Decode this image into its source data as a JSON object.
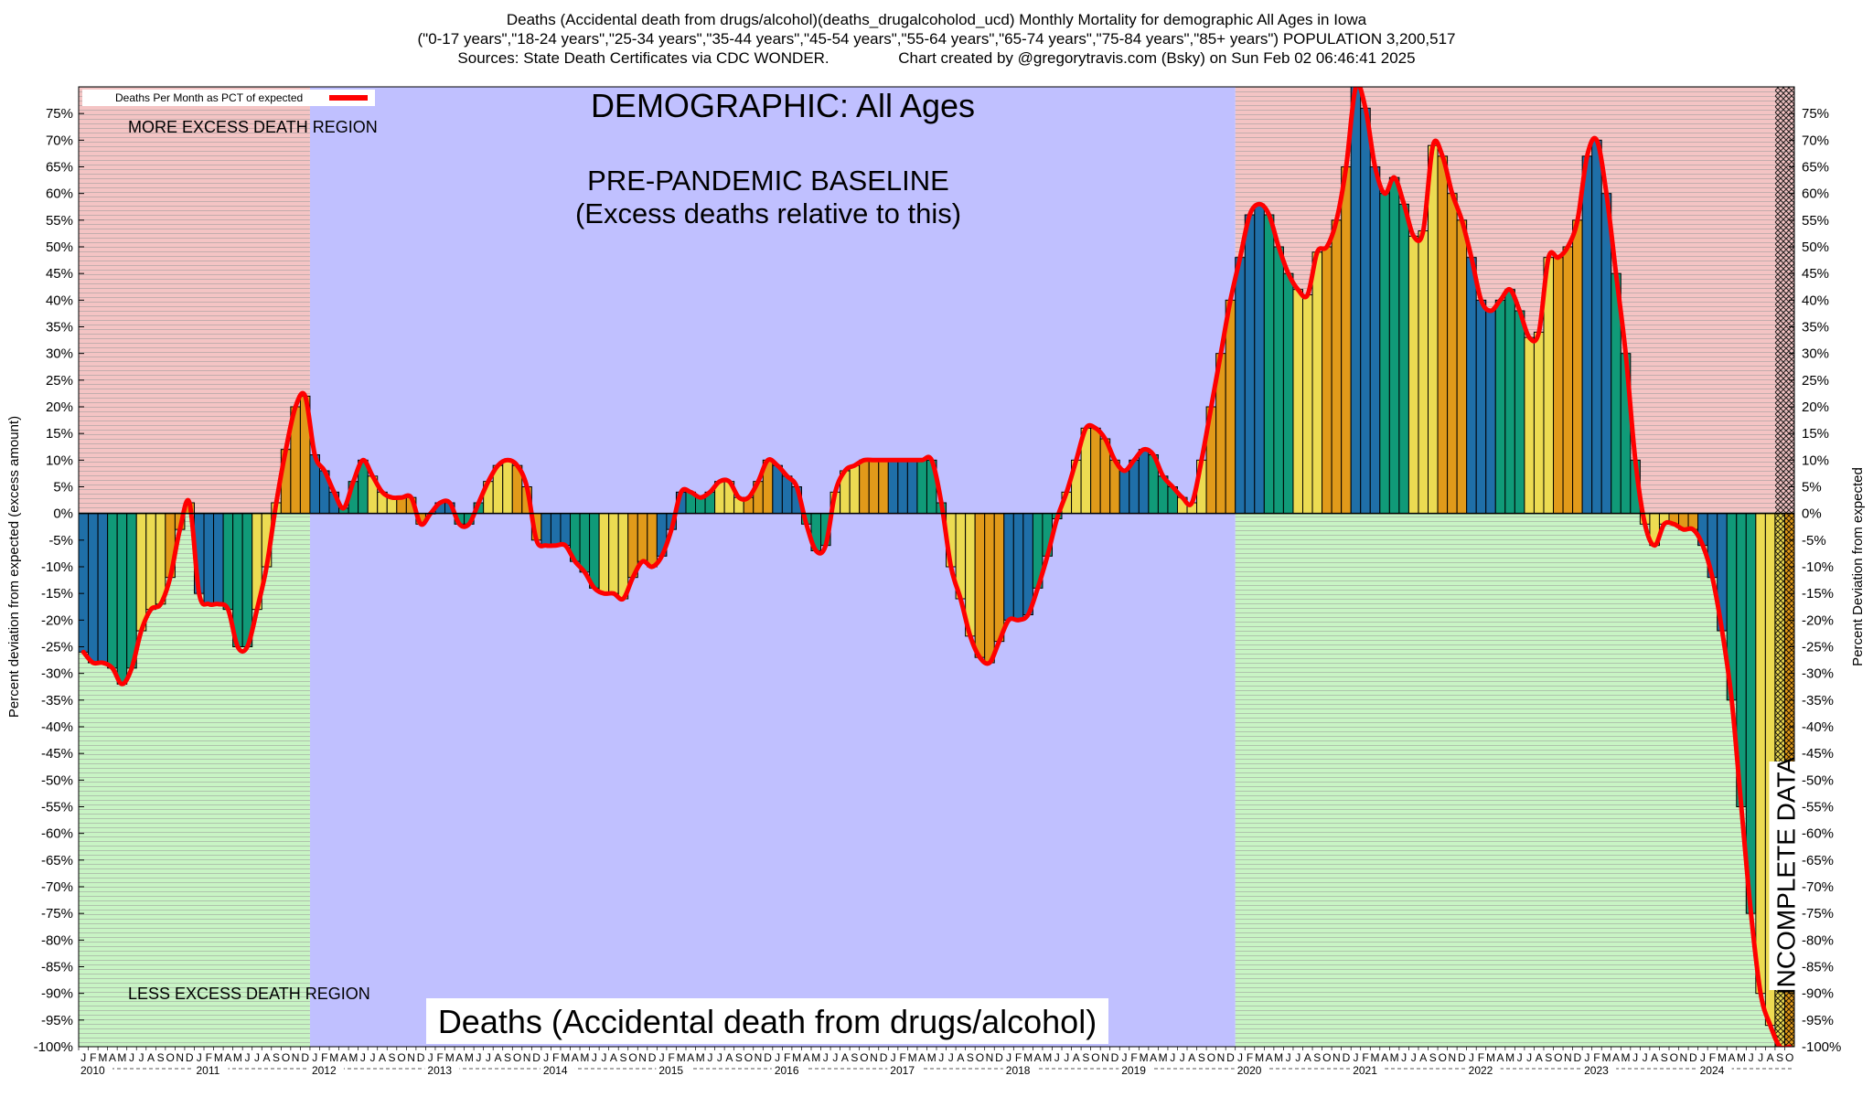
{
  "header": {
    "line1": "Deaths (Accidental death from drugs/alcohol)(deaths_drugalcoholod_ucd) Monthly Mortality for demographic All Ages in Iowa",
    "line2": "(\"0-17 years\",\"18-24 years\",\"25-34 years\",\"35-44 years\",\"45-54 years\",\"55-64 years\",\"65-74 years\",\"75-84 years\",\"85+ years\") POPULATION 3,200,517",
    "line3_left": "Sources: State Death Certificates via CDC WONDER.",
    "line3_right": "Chart created by @gregorytravis.com (Bsky) on Sun Feb 02 06:46:41 2025"
  },
  "chart_data": {
    "type": "bar",
    "legend": {
      "label": "Deaths Per Month as PCT of expected",
      "position": "top-left"
    },
    "annotations": {
      "demographic": "DEMOGRAPHIC: All Ages",
      "baseline_line1": "PRE-PANDEMIC BASELINE",
      "baseline_line2": "(Excess deaths relative to this)",
      "more_region": "MORE EXCESS DEATH REGION",
      "less_region": "LESS EXCESS DEATH REGION",
      "bottom_title": "Deaths (Accidental death from drugs/alcohol)",
      "incomplete": "INCOMPLETE DATA"
    },
    "ylabel_left": "Percent deviation from expected (excess amount)",
    "ylabel_right": "Percent Deviation from expected",
    "ylim": [
      -100,
      80
    ],
    "y_ticks": [
      75,
      70,
      65,
      60,
      55,
      50,
      45,
      40,
      35,
      30,
      25,
      20,
      15,
      10,
      5,
      0,
      -5,
      -10,
      -15,
      -20,
      -25,
      -30,
      -35,
      -40,
      -45,
      -50,
      -55,
      -60,
      -65,
      -70,
      -75,
      -80,
      -85,
      -90,
      -95,
      -100
    ],
    "x_start": "2010-01",
    "years": [
      "2010",
      "2011",
      "2012",
      "2013",
      "2014",
      "2015",
      "2016",
      "2017",
      "2018",
      "2019",
      "2020",
      "2021",
      "2022",
      "2023",
      "2024"
    ],
    "month_letters": [
      "J",
      "F",
      "M",
      "A",
      "M",
      "J",
      "J",
      "A",
      "S",
      "O",
      "N",
      "D"
    ],
    "baseline_period": [
      "2012-01",
      "2019-12"
    ],
    "incomplete_from": "2024-09",
    "colors": {
      "bar_blue": "#1f6fa8",
      "bar_green": "#109a78",
      "bar_yellow": "#ecdb52",
      "bar_orange": "#e19a1a",
      "line": "#ff0000",
      "region_more": "#f4c4c4",
      "region_less": "#c8f4c4",
      "baseline_region": "#c0c0ff",
      "stripe": "#9a9a9a"
    },
    "values": [
      -26,
      -28,
      -28,
      -29,
      -32,
      -29,
      -22,
      -18,
      -17,
      -12,
      -3,
      2,
      -15,
      -17,
      -17,
      -18,
      -25,
      -25,
      -18,
      -10,
      2,
      12,
      20,
      22,
      11,
      8,
      4,
      1,
      6,
      10,
      7,
      4,
      3,
      3,
      3,
      -2,
      0,
      2,
      2,
      -2,
      -2,
      2,
      6,
      9,
      10,
      9,
      5,
      -5,
      -6,
      -6,
      -6,
      -9,
      -11,
      -14,
      -15,
      -15,
      -16,
      -12,
      -9,
      -10,
      -8,
      -3,
      4,
      4,
      3,
      4,
      6,
      6,
      3,
      3,
      6,
      10,
      9,
      7,
      5,
      -2,
      -7,
      -6,
      4,
      8,
      9,
      10,
      10,
      10,
      10,
      10,
      10,
      10,
      10,
      2,
      -10,
      -16,
      -23,
      -27,
      -28,
      -24,
      -20,
      -20,
      -19,
      -14,
      -8,
      -1,
      4,
      10,
      16,
      16,
      14,
      10,
      8,
      10,
      12,
      11,
      7,
      5,
      3,
      2,
      10,
      20,
      30,
      40,
      48,
      56,
      58,
      56,
      50,
      45,
      42,
      41,
      49,
      50,
      55,
      65,
      80,
      76,
      65,
      60,
      63,
      58,
      52,
      53,
      69,
      67,
      60,
      55,
      48,
      40,
      38,
      40,
      42,
      38,
      33,
      34,
      48,
      48,
      50,
      55,
      67,
      70,
      60,
      45,
      30,
      10,
      -2,
      -6,
      -2,
      -2,
      -3,
      -3,
      -6,
      -12,
      -22,
      -35,
      -55,
      -75,
      -90,
      -96,
      -100,
      -100
    ]
  }
}
